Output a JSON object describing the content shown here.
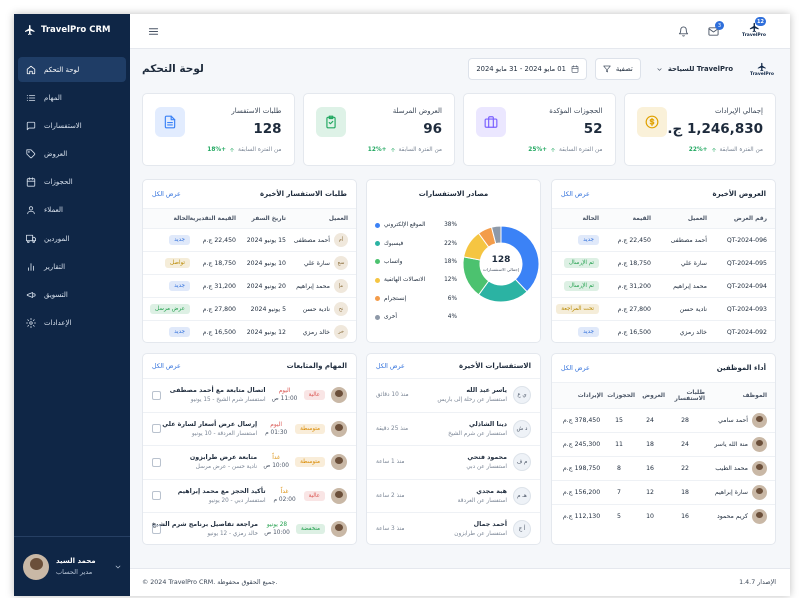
{
  "sidebar": {
    "brand": "TravelPro CRM",
    "nav": [
      "لوحة التحكم",
      "المهام",
      "الاستفسارات",
      "العروض",
      "الحجوزات",
      "العملاء",
      "الموردين",
      "التقارير",
      "التسويق",
      "الإعدادات"
    ],
    "user": {
      "name": "محمد السيد",
      "role": "مدير الحساب"
    }
  },
  "topbar": {
    "mail_badge": 3,
    "profile_badge": 12,
    "logo": "TravelPro"
  },
  "header": {
    "title": "لوحة التحكم",
    "date_range": "01 مايو 2024 - 31 مايو 2024",
    "filter": "تصفية",
    "company": "TravelPro للسياحة",
    "logo": "TravelPro"
  },
  "kpis": [
    {
      "label": "إجمالي الإيرادات",
      "value": "1,246,830 ج.م",
      "change": "+22%",
      "note": "من الفترة السابقة",
      "color": "#e0a100"
    },
    {
      "label": "الحجوزات المؤكدة",
      "value": "52",
      "change": "+25%",
      "note": "من الفترة السابقة",
      "color": "#7b61ff"
    },
    {
      "label": "العروض المرسلة",
      "value": "96",
      "change": "+12%",
      "note": "من الفترة السابقة",
      "color": "#22a861"
    },
    {
      "label": "طلبات الاستفسار",
      "value": "128",
      "change": "+18%",
      "note": "من الفترة السابقة",
      "color": "#3b82f6"
    }
  ],
  "recent_offers": {
    "title": "العروض الأخيرة",
    "view_all": "عرض الكل",
    "columns": [
      "رقم العرض",
      "العميل",
      "القيمة",
      "الحالة"
    ],
    "rows": [
      [
        "QT-2024-096",
        "أحمد مصطفى",
        "22,450 ج.م",
        "جديد"
      ],
      [
        "QT-2024-095",
        "سارة علي",
        "18,750 ج.م",
        "تم الإرسال"
      ],
      [
        "QT-2024-094",
        "محمد إبراهيم",
        "31,200 ج.م",
        "تم الإرسال"
      ],
      [
        "QT-2024-093",
        "نادية حسن",
        "27,800 ج.م",
        "تحت المراجعة"
      ],
      [
        "QT-2024-092",
        "خالد رمزي",
        "16,500 ج.م",
        "جديد"
      ]
    ],
    "status_colors": [
      "#2f6fdb",
      "#1e9e4a",
      "#1e9e4a",
      "#b98900",
      "#2f6fdb"
    ]
  },
  "inquiry_sources": {
    "title": "مصادر الاستفسارات",
    "total": 128,
    "total_label": "إجمالي الاستفسارات",
    "items": [
      {
        "label": "الموقع الإلكتروني",
        "value": 38,
        "value_label": "38%",
        "color": "#3b82f6"
      },
      {
        "label": "فيسبوك",
        "value": 22,
        "value_label": "22%",
        "color": "#2bb3a3"
      },
      {
        "label": "واتساب",
        "value": 18,
        "value_label": "18%",
        "color": "#4cc26f"
      },
      {
        "label": "الاتصالات الهاتفية",
        "value": 12,
        "value_label": "12%",
        "color": "#f5c542"
      },
      {
        "label": "إنستجرام",
        "value": 6,
        "value_label": "6%",
        "color": "#f39c4a"
      },
      {
        "label": "أخرى",
        "value": 4,
        "value_label": "4%",
        "color": "#8e99a8"
      }
    ]
  },
  "recent_requests": {
    "title": "طلبات الاستفسار الأخيرة",
    "view_all": "عرض الكل",
    "columns": [
      "العميل",
      "تاريخ السفر",
      "القيمة التقديرية",
      "الحالة"
    ],
    "initials": [
      "أم",
      "سع",
      "مإ",
      "نح",
      "خر"
    ],
    "rows": [
      [
        "أحمد مصطفى",
        "15 يونيو 2024",
        "22,450 ج.م",
        "جديد"
      ],
      [
        "سارة علي",
        "10 يونيو 2024",
        "18,750 ج.م",
        "تواصل"
      ],
      [
        "محمد إبراهيم",
        "20 يونيو 2024",
        "31,200 ج.م",
        "جديد"
      ],
      [
        "نادية حسن",
        "5 يونيو 2024",
        "27,800 ج.م",
        "عرض مرسل"
      ],
      [
        "خالد رمزي",
        "12 يونيو 2024",
        "16,500 ج.م",
        "جديد"
      ]
    ],
    "status_colors": [
      "#2f6fdb",
      "#b98900",
      "#2f6fdb",
      "#1e9e4a",
      "#2f6fdb"
    ]
  },
  "employee_performance": {
    "title": "أداء الموظفين",
    "view_all": "عرض الكل",
    "columns": [
      "الموظف",
      "طلبات الاستفسار",
      "العروض",
      "الحجوزات",
      "الإيرادات"
    ],
    "rows": [
      [
        "أحمد سامي",
        28,
        24,
        15,
        "378,450 ج.م"
      ],
      [
        "منة الله ياسر",
        24,
        18,
        11,
        "245,300 ج.م"
      ],
      [
        "محمد الطيب",
        22,
        16,
        8,
        "198,750 ج.م"
      ],
      [
        "سارة إبراهيم",
        18,
        12,
        7,
        "156,200 ج.م"
      ],
      [
        "كريم محمود",
        16,
        10,
        5,
        "112,130 ج.م"
      ]
    ]
  },
  "recent_inquiries": {
    "title": "الاستفسارات الأخيرة",
    "view_all": "عرض الكل",
    "items": [
      {
        "initials": "ي ع",
        "name": "ياسر عبد الله",
        "subject": "استفسار عن رحلة إلى باريس",
        "time": "منذ 10 دقائق"
      },
      {
        "initials": "د ش",
        "name": "دينا الشاذلي",
        "subject": "استفسار عن شرم الشيخ",
        "time": "منذ 25 دقيقة"
      },
      {
        "initials": "م ف",
        "name": "محمود فتحي",
        "subject": "استفسار عن دبي",
        "time": "منذ 1 ساعة"
      },
      {
        "initials": "هـ م",
        "name": "هبة مجدي",
        "subject": "استفسار عن الغردقة",
        "time": "منذ 2 ساعة"
      },
      {
        "initials": "أ ج",
        "name": "أحمد جمال",
        "subject": "استفسار عن طرابزون",
        "time": "منذ 3 ساعة"
      }
    ]
  },
  "tasks": {
    "title": "المهام والمتابعات",
    "view_all": "عرض الكل",
    "items": [
      {
        "title": "اتصال متابعة مع أحمد مصطفى",
        "detail": "استفسار شرم الشيخ - 15 يونيو",
        "day": "اليوم",
        "time": "11:00 ص",
        "priority": "عالية",
        "day_color": "#d9534f",
        "priority_color": "#d9534f"
      },
      {
        "title": "إرسال عرض أسعار لسارة علي",
        "detail": "استفسار الغردقة - 10 يونيو",
        "day": "اليوم",
        "time": "01:30 م",
        "priority": "متوسطة",
        "day_color": "#d9534f",
        "priority_color": "#d98a00"
      },
      {
        "title": "متابعة عرض طرابزون",
        "detail": "نادية حسن - عرض مرسل",
        "day": "غداً",
        "time": "10:00 ص",
        "priority": "متوسطة",
        "day_color": "#d98a00",
        "priority_color": "#d98a00"
      },
      {
        "title": "تأكيد الحجز مع محمد إبراهيم",
        "detail": "استفسار دبي - 20 يونيو",
        "day": "غداً",
        "time": "02:00 م",
        "priority": "عالية",
        "day_color": "#d98a00",
        "priority_color": "#d9534f"
      },
      {
        "title": "مراجعة تفاصيل برنامج شرم الشيخ",
        "detail": "خالد رمزي - 12 يونيو",
        "day": "28 يونيو",
        "time": "10:00 ص",
        "priority": "منخفضة",
        "day_color": "#1e9e4a",
        "priority_color": "#1e9e4a"
      }
    ]
  },
  "footer": {
    "copyright": "© 2024 TravelPro CRM. جميع الحقوق محفوظة.",
    "version": "الإصدار 1.4.7"
  }
}
